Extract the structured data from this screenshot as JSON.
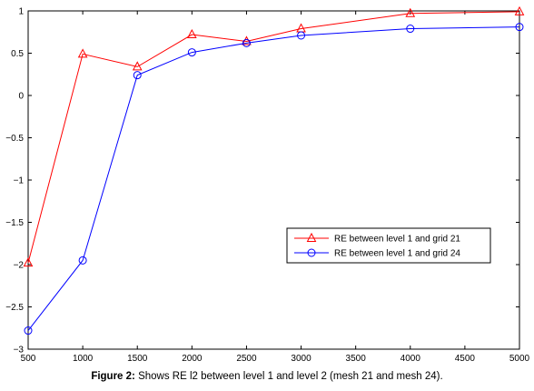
{
  "caption": {
    "label": "Figure 2:",
    "text": " Shows RE l2 between level 1 and level 2 (mesh 21 and mesh 24)."
  },
  "chart_data": {
    "type": "line",
    "x": [
      500,
      1000,
      1500,
      2000,
      2500,
      3000,
      4000,
      5000
    ],
    "series": [
      {
        "name": "RE between level 1 and grid 21",
        "color": "#ff0000",
        "marker": "triangle",
        "values": [
          -1.98,
          0.49,
          0.34,
          0.72,
          0.64,
          0.79,
          0.97,
          0.99
        ]
      },
      {
        "name": "RE between level 1 and grid 24",
        "color": "#0000ff",
        "marker": "circle",
        "values": [
          -2.78,
          -1.95,
          0.24,
          0.51,
          0.62,
          0.71,
          0.79,
          0.81
        ]
      }
    ],
    "xlim": [
      500,
      5000
    ],
    "ylim": [
      -3,
      1
    ],
    "xticks": [
      500,
      1000,
      1500,
      2000,
      2500,
      3000,
      3500,
      4000,
      4500,
      5000
    ],
    "yticks": [
      -3,
      -2.5,
      -2,
      -1.5,
      -1,
      -0.5,
      0,
      0.5,
      1
    ],
    "yticklabels": [
      "−3",
      "−2.5",
      "−2",
      "−1.5",
      "−1",
      "−0.5",
      "0",
      "0.5",
      "1"
    ],
    "grid": false,
    "legend_position": "center-right"
  }
}
